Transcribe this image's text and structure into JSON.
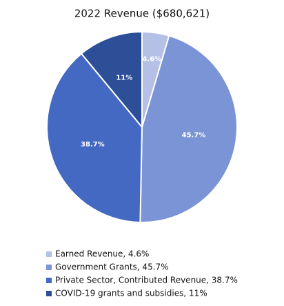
{
  "chart_data": {
    "type": "pie",
    "title": "2022 Revenue ($680,621)",
    "categories": [
      "Earned Revenue, 4.6%",
      "Government Grants, 45.7%",
      "Private Sector, Contributed Revenue, 38.7%",
      "COVID-19 grants and subsidies, 11%"
    ],
    "values": [
      4.6,
      45.7,
      38.7,
      11
    ],
    "value_labels": [
      "4.6%",
      "45.7%",
      "38.7%",
      "11%"
    ],
    "colors": [
      "#b4c0e6",
      "#7b94d5",
      "#4469c2",
      "#2d4f98"
    ],
    "legend": "bottom"
  }
}
